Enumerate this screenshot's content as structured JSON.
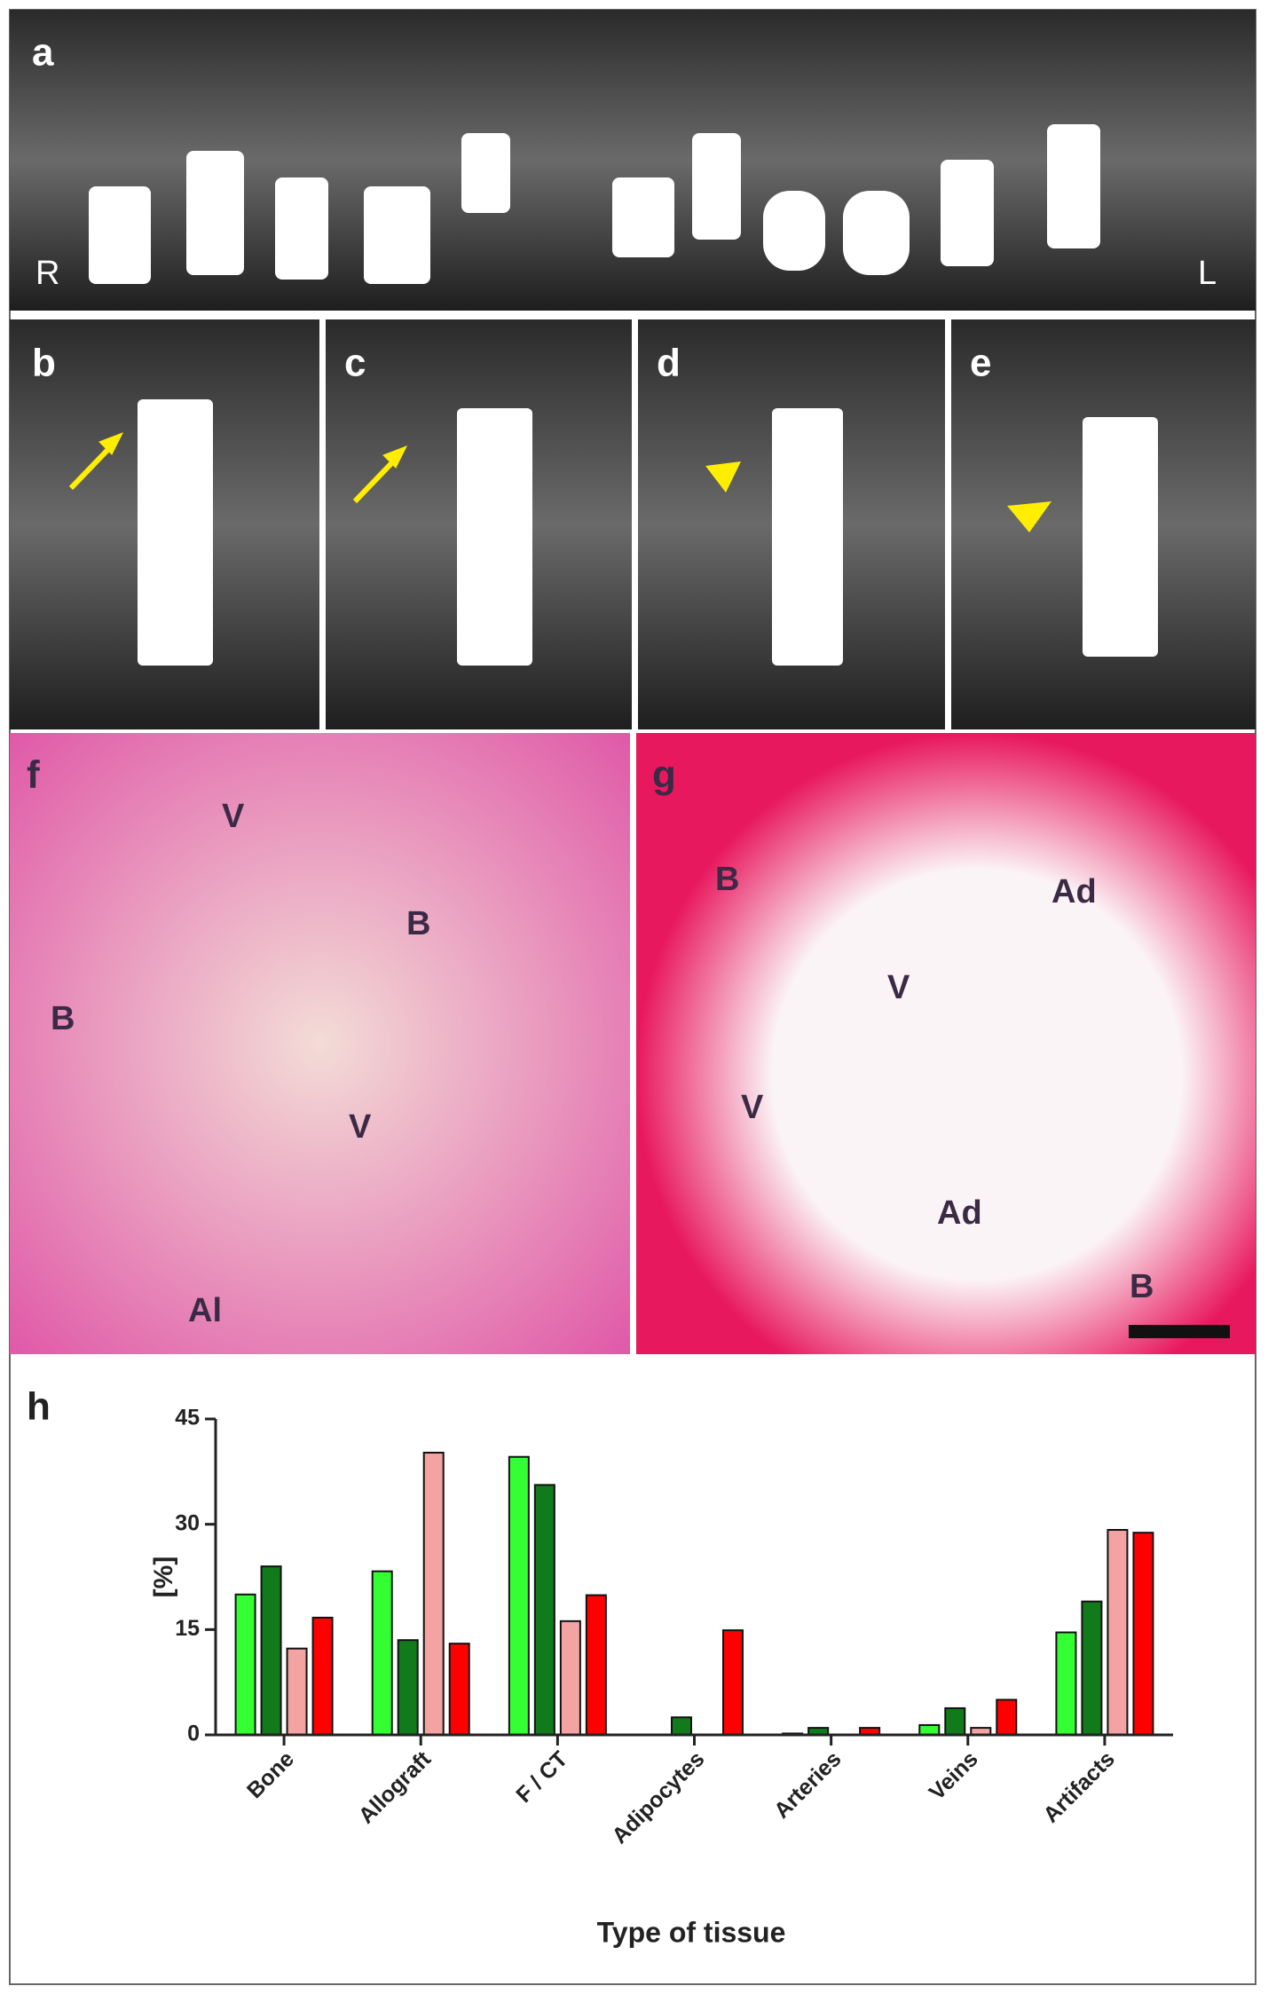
{
  "figure": {
    "panels": [
      {
        "letter": "a",
        "labels": [
          "R",
          "L"
        ]
      },
      {
        "letter": "b"
      },
      {
        "letter": "c"
      },
      {
        "letter": "d"
      },
      {
        "letter": "e"
      },
      {
        "letter": "f",
        "labels": [
          "V",
          "B",
          "B",
          "V",
          "Al"
        ]
      },
      {
        "letter": "g",
        "labels": [
          "B",
          "Ad",
          "V",
          "V",
          "Ad",
          "B"
        ]
      },
      {
        "letter": "h"
      }
    ]
  },
  "chart_data": {
    "type": "bar",
    "ylabel": "[%]",
    "xlabel": "Type of tissue",
    "categories": [
      "Bone",
      "Allograft",
      "F / CT",
      "Adipocytes",
      "Arteries",
      "Veins",
      "Artifacts"
    ],
    "series": [
      {
        "color": "#33ff33",
        "values": [
          20,
          23.3,
          39.6,
          0,
          0.2,
          1.4,
          14.6
        ]
      },
      {
        "color": "#117a1b",
        "values": [
          24,
          13.5,
          35.6,
          2.5,
          1,
          3.8,
          19
        ]
      },
      {
        "color": "#f4a3a3",
        "values": [
          12.3,
          40.2,
          16.2,
          0,
          0,
          1,
          29.2
        ]
      },
      {
        "color": "#ff0000",
        "values": [
          16.7,
          13,
          19.9,
          14.9,
          1,
          5,
          28.8
        ]
      }
    ],
    "ylim": [
      0,
      45
    ],
    "yticks": [
      0,
      15,
      30,
      45
    ]
  }
}
